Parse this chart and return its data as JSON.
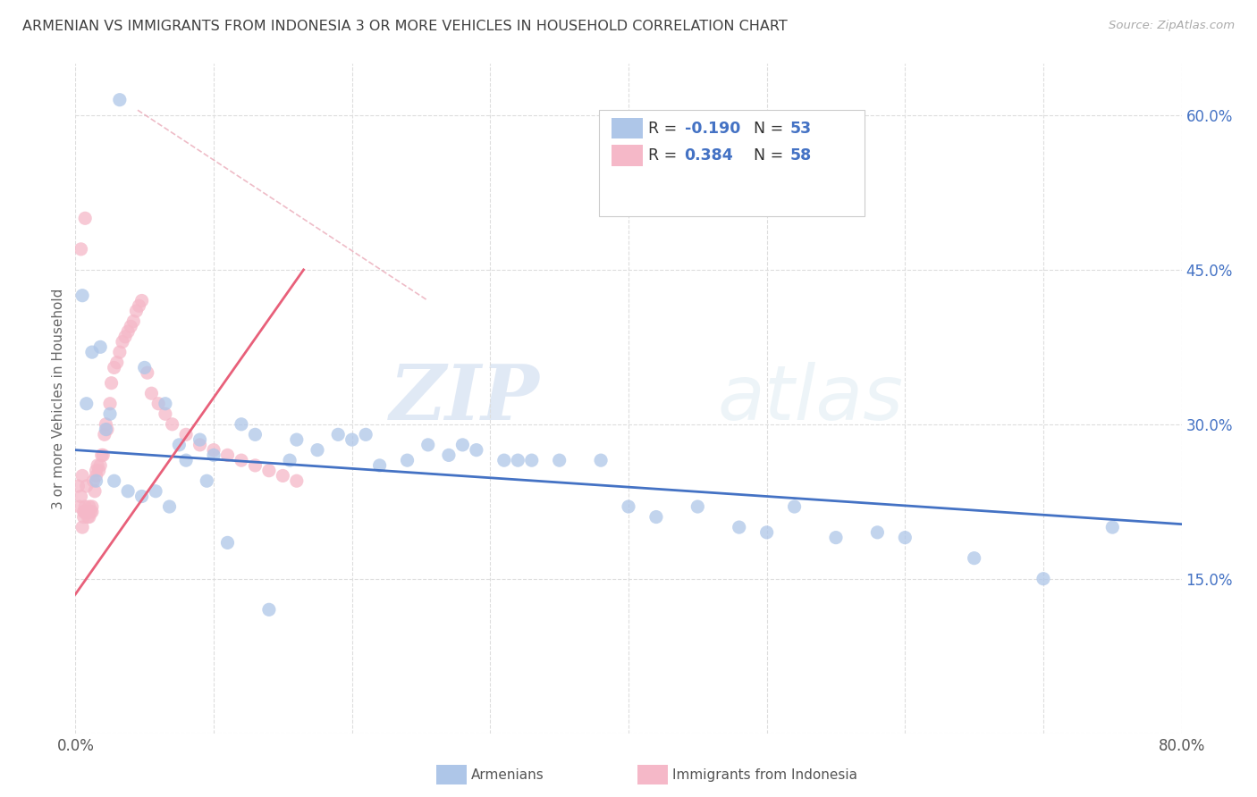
{
  "title": "ARMENIAN VS IMMIGRANTS FROM INDONESIA 3 OR MORE VEHICLES IN HOUSEHOLD CORRELATION CHART",
  "source": "Source: ZipAtlas.com",
  "ylabel": "3 or more Vehicles in Household",
  "y_ticks": [
    0.0,
    0.15,
    0.3,
    0.45,
    0.6
  ],
  "y_tick_labels": [
    "",
    "15.0%",
    "30.0%",
    "45.0%",
    "60.0%"
  ],
  "x_range": [
    0.0,
    0.8
  ],
  "y_range": [
    0.0,
    0.65
  ],
  "watermark_zip": "ZIP",
  "watermark_atlas": "atlas",
  "legend_armenians": "Armenians",
  "legend_indonesia": "Immigrants from Indonesia",
  "R_armenians": "-0.190",
  "N_armenians": "53",
  "R_indonesia": "0.384",
  "N_indonesia": "58",
  "color_armenians": "#aec6e8",
  "color_indonesia": "#f5b8c8",
  "color_line_armenians": "#4472c4",
  "color_line_indonesia": "#e8607a",
  "color_title": "#404040",
  "arm_line_x": [
    0.0,
    0.8
  ],
  "arm_line_y": [
    0.275,
    0.203
  ],
  "ind_line_x": [
    0.0,
    0.165
  ],
  "ind_line_y": [
    0.135,
    0.45
  ],
  "ref_line_x": [
    0.045,
    0.255
  ],
  "ref_line_y": [
    0.605,
    0.42
  ],
  "armenians_x": [
    0.032,
    0.005,
    0.018,
    0.012,
    0.008,
    0.025,
    0.022,
    0.05,
    0.065,
    0.075,
    0.09,
    0.1,
    0.12,
    0.13,
    0.155,
    0.16,
    0.175,
    0.19,
    0.2,
    0.21,
    0.22,
    0.24,
    0.255,
    0.27,
    0.28,
    0.29,
    0.31,
    0.32,
    0.33,
    0.35,
    0.38,
    0.4,
    0.42,
    0.45,
    0.48,
    0.5,
    0.52,
    0.55,
    0.58,
    0.6,
    0.65,
    0.7,
    0.015,
    0.028,
    0.038,
    0.048,
    0.058,
    0.068,
    0.08,
    0.095,
    0.11,
    0.14,
    0.75
  ],
  "armenians_y": [
    0.615,
    0.425,
    0.375,
    0.37,
    0.32,
    0.31,
    0.295,
    0.355,
    0.32,
    0.28,
    0.285,
    0.27,
    0.3,
    0.29,
    0.265,
    0.285,
    0.275,
    0.29,
    0.285,
    0.29,
    0.26,
    0.265,
    0.28,
    0.27,
    0.28,
    0.275,
    0.265,
    0.265,
    0.265,
    0.265,
    0.265,
    0.22,
    0.21,
    0.22,
    0.2,
    0.195,
    0.22,
    0.19,
    0.195,
    0.19,
    0.17,
    0.15,
    0.245,
    0.245,
    0.235,
    0.23,
    0.235,
    0.22,
    0.265,
    0.245,
    0.185,
    0.12,
    0.2
  ],
  "indonesia_x": [
    0.002,
    0.003,
    0.004,
    0.005,
    0.005,
    0.006,
    0.006,
    0.007,
    0.007,
    0.008,
    0.008,
    0.009,
    0.01,
    0.01,
    0.011,
    0.012,
    0.012,
    0.013,
    0.014,
    0.015,
    0.015,
    0.016,
    0.017,
    0.018,
    0.019,
    0.02,
    0.021,
    0.022,
    0.023,
    0.025,
    0.026,
    0.028,
    0.03,
    0.032,
    0.034,
    0.036,
    0.038,
    0.04,
    0.042,
    0.044,
    0.046,
    0.048,
    0.052,
    0.055,
    0.06,
    0.065,
    0.07,
    0.08,
    0.09,
    0.1,
    0.11,
    0.12,
    0.13,
    0.14,
    0.15,
    0.16,
    0.004,
    0.007
  ],
  "indonesia_y": [
    0.24,
    0.22,
    0.23,
    0.25,
    0.2,
    0.21,
    0.215,
    0.215,
    0.22,
    0.24,
    0.215,
    0.21,
    0.21,
    0.22,
    0.215,
    0.22,
    0.215,
    0.245,
    0.235,
    0.255,
    0.25,
    0.26,
    0.255,
    0.26,
    0.27,
    0.27,
    0.29,
    0.3,
    0.295,
    0.32,
    0.34,
    0.355,
    0.36,
    0.37,
    0.38,
    0.385,
    0.39,
    0.395,
    0.4,
    0.41,
    0.415,
    0.42,
    0.35,
    0.33,
    0.32,
    0.31,
    0.3,
    0.29,
    0.28,
    0.275,
    0.27,
    0.265,
    0.26,
    0.255,
    0.25,
    0.245,
    0.47,
    0.5
  ],
  "background_color": "#ffffff",
  "grid_color": "#dddddd"
}
